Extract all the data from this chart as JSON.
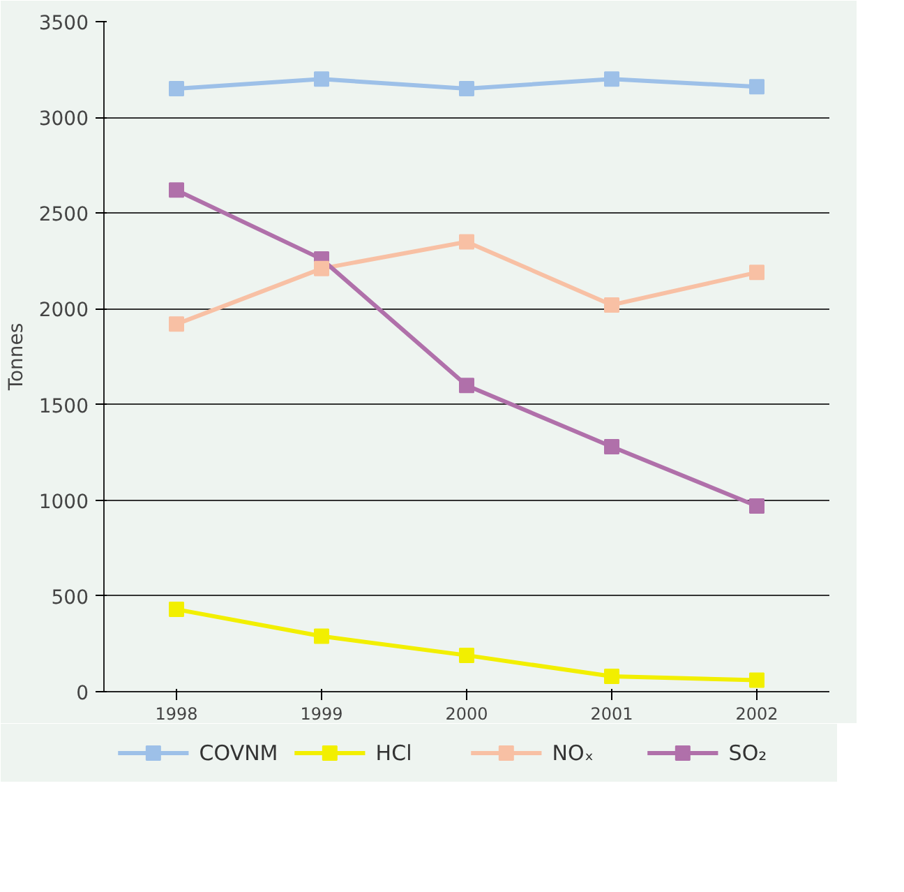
{
  "chart_data": {
    "type": "line",
    "ylabel": "Tonnes",
    "categories": [
      "1998",
      "1999",
      "2000",
      "2001",
      "2002"
    ],
    "series": [
      {
        "name": "COVNM",
        "color": "#9dc0e8",
        "values": [
          3150,
          3200,
          3150,
          3200,
          3160
        ]
      },
      {
        "name": "HCl",
        "color": "#f2ef00",
        "values": [
          430,
          290,
          190,
          80,
          60
        ]
      },
      {
        "name": "NOₓ",
        "color": "#f8c0a4",
        "values": [
          1920,
          2210,
          2350,
          2020,
          2190
        ]
      },
      {
        "name": "SO₂",
        "color": "#b070aa",
        "values": [
          2620,
          2260,
          1600,
          1280,
          970
        ]
      }
    ],
    "ylim": [
      0,
      3500
    ],
    "yticks": [
      0,
      500,
      1000,
      1500,
      2000,
      2500,
      3000,
      3500
    ],
    "grid": "y",
    "legend": "bottom",
    "marker": "square",
    "line_style": "solid"
  }
}
